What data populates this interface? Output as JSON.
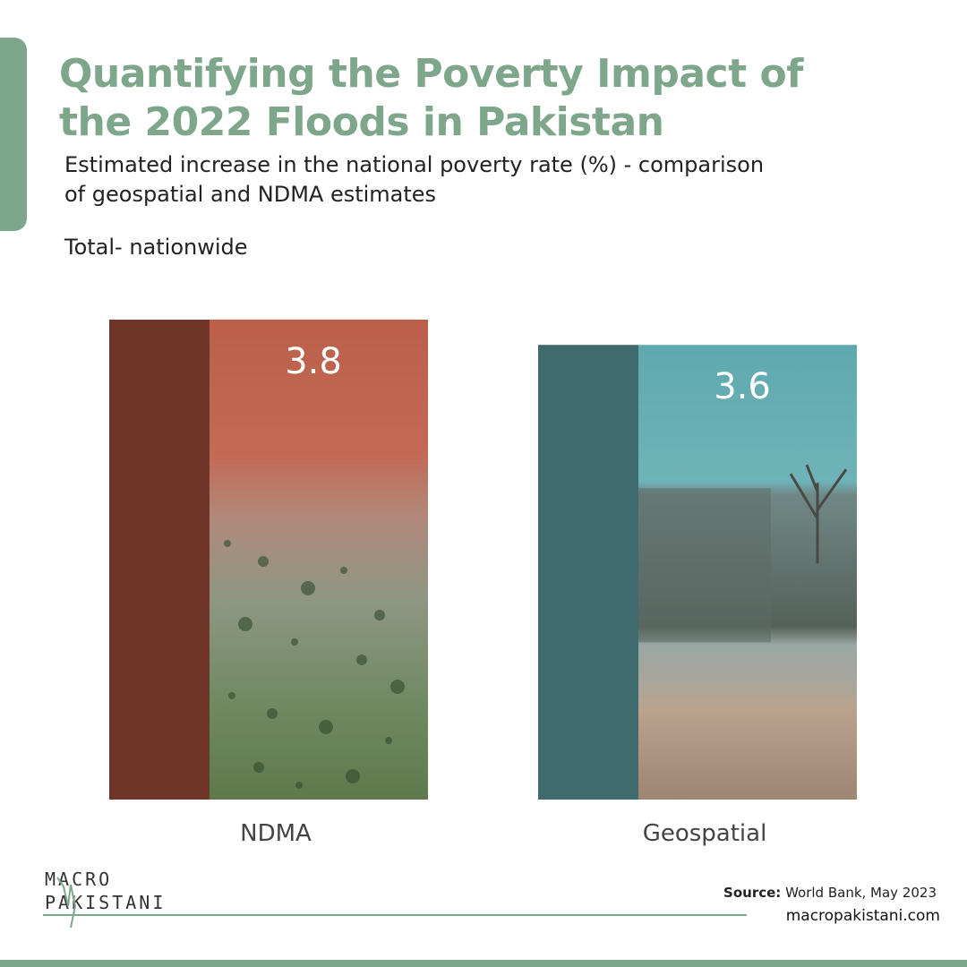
{
  "header": {
    "title_line1": "Quantifying the Poverty Impact of",
    "title_line2": "the 2022 Floods in Pakistan",
    "subtitle_line1": "Estimated increase in the national poverty rate (%) - comparison",
    "subtitle_line2": "of geospatial and NDMA estimates",
    "total_label": "Total- nationwide"
  },
  "chart_data": {
    "type": "bar",
    "categories": [
      "NDMA",
      "Geospatial"
    ],
    "values": [
      3.8,
      3.6
    ],
    "value_labels": [
      "3.8",
      "3.6"
    ],
    "xlabel": "",
    "ylabel": "",
    "ylim": [
      0,
      3.8
    ],
    "grid": false,
    "bar_colors": [
      {
        "side": "#6e3528",
        "top": "#bd6450",
        "bottom": "#7f8d6a",
        "photo": "flooded-fields-aerial"
      },
      {
        "side": "#3e6b6d",
        "top": "#62adb3",
        "bottom": "#b59a82",
        "photo": "flooded-wall-and-tree"
      }
    ]
  },
  "footer": {
    "brand_line1": "MACRO",
    "brand_line2": "PAKISTANI",
    "source_label": "Source:",
    "source_text": "World Bank, May 2023",
    "website": "macropakistani.com"
  },
  "colors": {
    "accent": "#7ea68a",
    "text": "#222222"
  }
}
